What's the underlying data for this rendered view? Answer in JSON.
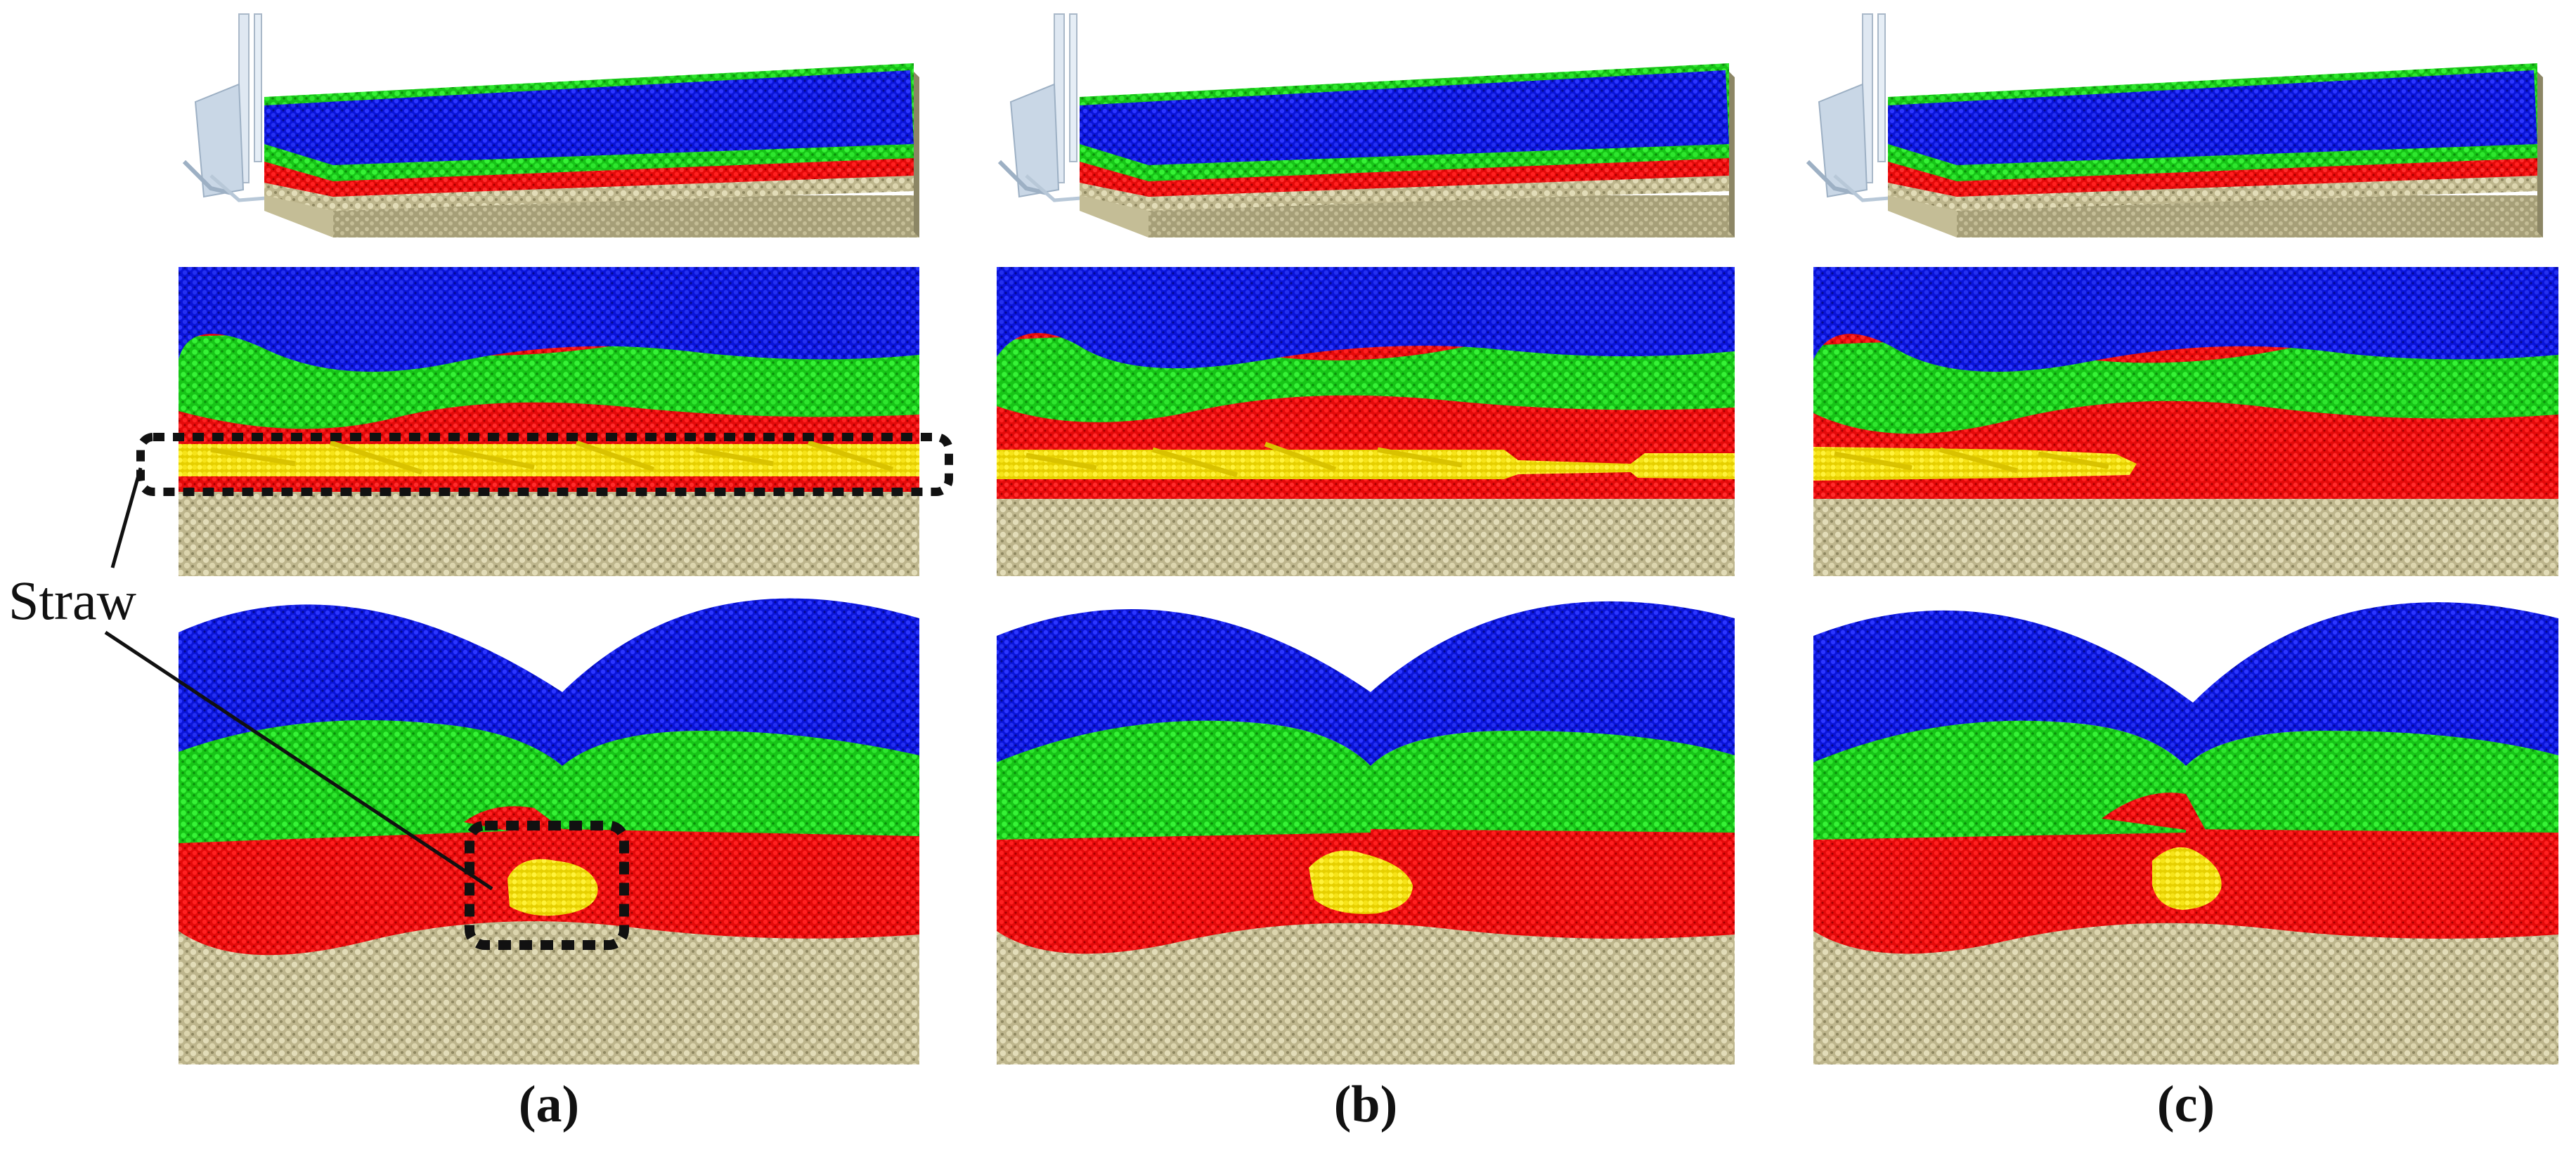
{
  "figure": {
    "annotation_label": "Straw",
    "panels": [
      {
        "caption": "(a)"
      },
      {
        "caption": "(b)"
      },
      {
        "caption": "(c)"
      }
    ],
    "layer_colors": {
      "top_layer": "#0a14d8",
      "second_layer": "#19d219",
      "third_layer": "#ef0b0b",
      "base_layer": "#cdc6a0",
      "straw": "#f2df10",
      "tool": "#c9d7e6"
    }
  }
}
